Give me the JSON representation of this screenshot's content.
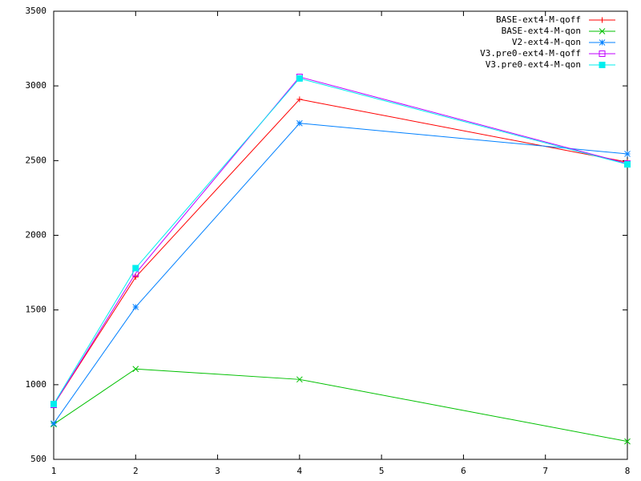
{
  "chart_data": {
    "type": "line",
    "x": [
      1,
      2,
      4,
      8
    ],
    "series": [
      {
        "name": "BASE-ext4-M-qoff",
        "color": "#ff0000",
        "marker": "plus",
        "values": [
          865,
          1720,
          2910,
          2490
        ]
      },
      {
        "name": "BASE-ext4-M-qon",
        "color": "#00c000",
        "marker": "cross",
        "values": [
          735,
          1105,
          1035,
          620
        ]
      },
      {
        "name": "V2-ext4-M-qon",
        "color": "#0080ff",
        "marker": "star",
        "values": [
          740,
          1520,
          2750,
          2545
        ]
      },
      {
        "name": "V3.pre0-ext4-M-qoff",
        "color": "#c000ff",
        "marker": "box",
        "values": [
          865,
          1745,
          3060,
          2480
        ]
      },
      {
        "name": "V3.pre0-ext4-M-qon",
        "color": "#00eeee",
        "marker": "filled-box",
        "values": [
          870,
          1780,
          3050,
          2475
        ]
      }
    ],
    "xlim": [
      1,
      8
    ],
    "xticks": [
      1,
      2,
      3,
      4,
      5,
      6,
      7,
      8
    ],
    "ylim": [
      500,
      3500
    ],
    "yticks": [
      500,
      1000,
      1500,
      2000,
      2500,
      3000,
      3500
    ],
    "legend": "upper right"
  }
}
